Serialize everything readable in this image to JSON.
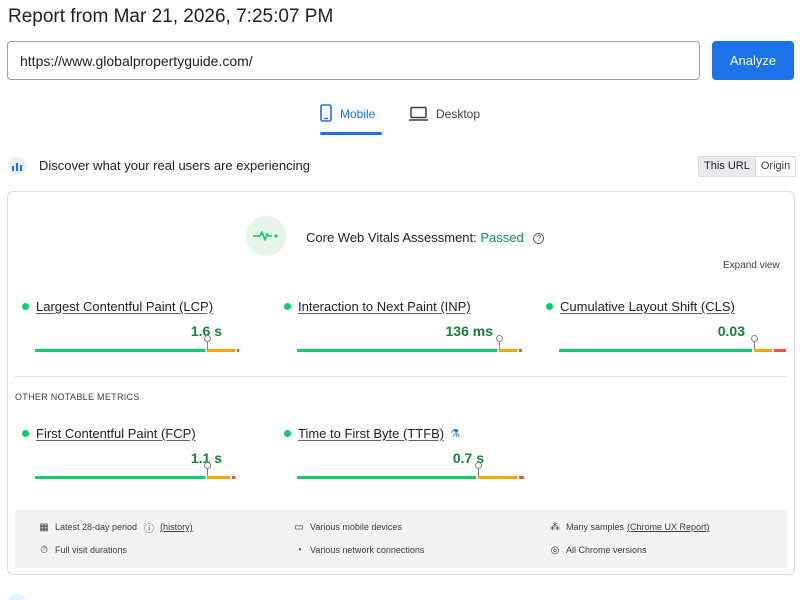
{
  "header": {
    "title": "Report from Mar 21, 2026, 7:25:07 PM"
  },
  "search": {
    "value": "https://www.globalpropertyguide.com/",
    "button_label": "Analyze"
  },
  "tabs": {
    "mobile": "Mobile",
    "desktop": "Desktop",
    "selected": "Mobile"
  },
  "field_data": {
    "heading": "Discover what your real users are experiencing",
    "toggle": {
      "this_url": "This URL",
      "origin": "Origin",
      "selected": "This URL"
    },
    "assessment": {
      "label": "Core Web Vitals Assessment:",
      "status": "Passed",
      "status_color": "#0d904f"
    },
    "expand_label": "Expand view",
    "core_metrics": [
      {
        "name": "Largest Contentful Paint (LCP)",
        "value": "1.6 s",
        "distribution": {
          "good": 0.75,
          "ni": 0.13,
          "poor": 0.02
        },
        "marker": 0.75
      },
      {
        "name": "Interaction to Next Paint (INP)",
        "value": "136 ms",
        "distribution": {
          "good": 0.88,
          "ni": 0.09,
          "poor": 0.02
        },
        "marker": 0.75
      },
      {
        "name": "Cumulative Layout Shift (CLS)",
        "value": "0.03",
        "distribution": {
          "good": 0.85,
          "ni": 0.09,
          "poor": 0.06
        },
        "marker": 0.75
      }
    ],
    "other_label": "OTHER NOTABLE METRICS",
    "other_metrics": [
      {
        "name": "First Contentful Paint (FCP)",
        "value": "1.1 s",
        "distribution": {
          "good": 0.75,
          "ni": 0.11,
          "poor": 0.02
        },
        "marker": 0.75,
        "experimental": false
      },
      {
        "name": "Time to First Byte (TTFB)",
        "value": "0.7 s",
        "distribution": {
          "good": 0.79,
          "ni": 0.18,
          "poor": 0.03
        },
        "marker": 0.75,
        "experimental": true
      }
    ],
    "info": {
      "period": "Latest 28-day period",
      "period_link": "(history)",
      "durations": "Full visit durations",
      "devices": "Various mobile devices",
      "network": "Various network connections",
      "samples": "Many samples",
      "samples_link": "(Chrome UX Report)",
      "versions": "All Chrome versions"
    }
  },
  "colors": {
    "accent": "#1a73e8",
    "good": "#0cce6b",
    "needs_improvement": "#ffa400",
    "poor": "#ff4e42",
    "value_text": "#188038"
  }
}
